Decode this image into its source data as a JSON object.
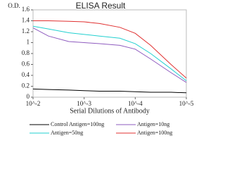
{
  "chart_data": {
    "type": "line",
    "title": "ELISA Result",
    "ylabel": "O.D.",
    "xlabel": "Serial Dilutions of Antibody",
    "x": [
      0.01,
      0.005,
      0.002,
      0.001,
      0.0005,
      0.0002,
      0.0001,
      5e-05,
      2e-05,
      1e-05
    ],
    "xlog": true,
    "xlim": [
      0.01,
      1e-05
    ],
    "xticks": [
      {
        "value": 0.01,
        "label": "10^-2"
      },
      {
        "value": 0.001,
        "label": "10^-3"
      },
      {
        "value": 0.0001,
        "label": "10^-4"
      },
      {
        "value": 1e-05,
        "label": "10^-5"
      }
    ],
    "ylim": [
      0,
      1.6
    ],
    "yticks": [
      0,
      0.2,
      0.4,
      0.6,
      0.8,
      1,
      1.2,
      1.4,
      1.6
    ],
    "legend": "bottom",
    "series": [
      {
        "name": "Control Antigen=100ng",
        "color": "#000000",
        "values": [
          0.15,
          0.14,
          0.13,
          0.12,
          0.11,
          0.11,
          0.1,
          0.09,
          0.09,
          0.08
        ]
      },
      {
        "name": "Antigen=10ng",
        "color": "#8e5bbf",
        "values": [
          1.27,
          1.12,
          1.02,
          1.0,
          0.98,
          0.95,
          0.88,
          0.7,
          0.45,
          0.27
        ]
      },
      {
        "name": "Antigen=50ng",
        "color": "#22d0d0",
        "values": [
          1.3,
          1.25,
          1.18,
          1.15,
          1.12,
          1.08,
          0.98,
          0.8,
          0.52,
          0.3
        ]
      },
      {
        "name": "Antigen=100ng",
        "color": "#e03030",
        "values": [
          1.4,
          1.4,
          1.39,
          1.38,
          1.35,
          1.28,
          1.17,
          0.95,
          0.6,
          0.35
        ]
      }
    ]
  }
}
